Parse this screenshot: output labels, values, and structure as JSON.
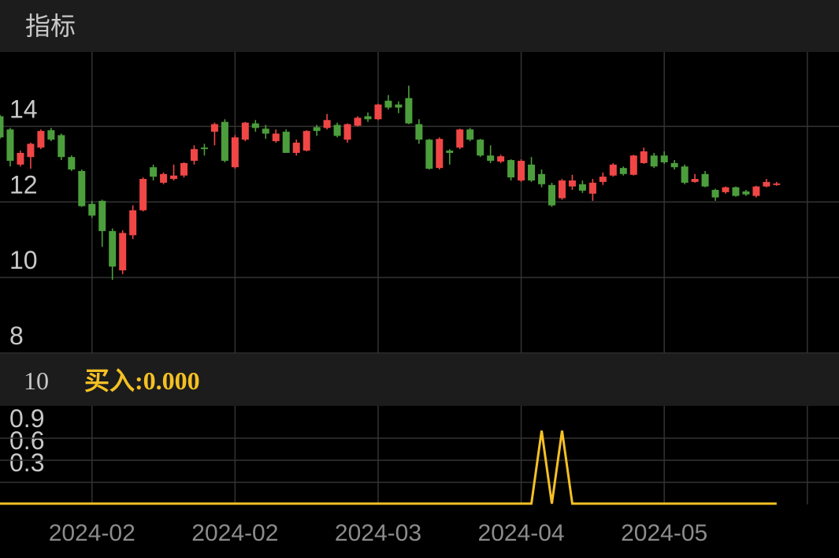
{
  "header": {
    "title": "指标"
  },
  "chart_data": [
    {
      "type": "candlestick",
      "up_color": "#f04646",
      "down_color": "#4c9e3c",
      "grid": true,
      "xlim": [
        0,
        82.1
      ],
      "ylim": [
        8,
        15.97
      ],
      "yticks": [
        8,
        10,
        12,
        14
      ],
      "open": [
        14.27,
        13.92,
        12.99,
        13.19,
        13.44,
        13.9,
        13.77,
        13.19,
        12.82,
        11.95,
        12.03,
        11.23,
        10.19,
        11.12,
        11.78,
        12.92,
        12.51,
        12.61,
        12.7,
        13.09,
        13.44,
        13.86,
        14.12,
        12.92,
        13.65,
        14.08,
        13.94,
        13.61,
        13.86,
        13.3,
        13.36,
        13.98,
        13.96,
        14.04,
        13.65,
        14.02,
        14.27,
        14.19,
        14.68,
        14.58,
        14.75,
        14.06,
        13.65,
        12.9,
        13.36,
        13.44,
        13.92,
        13.65,
        13.23,
        13.07,
        13.11,
        12.57,
        12.99,
        12.74,
        12.45,
        12.1,
        12.41,
        12.47,
        12.22,
        12.53,
        12.7,
        12.9,
        12.72,
        13.03,
        13.23,
        13.23,
        13.03,
        12.94,
        12.53,
        12.74,
        12.32,
        12.26,
        12.39,
        12.28,
        12.16,
        12.41,
        12.45
      ],
      "high": [
        14.31,
        13.96,
        13.36,
        13.57,
        13.92,
        13.96,
        13.81,
        13.23,
        12.86,
        12.03,
        12.06,
        11.3,
        11.25,
        11.91,
        12.65,
        12.99,
        12.78,
        12.99,
        13.05,
        13.5,
        13.54,
        14.1,
        14.19,
        13.77,
        14.12,
        14.17,
        14.04,
        13.92,
        13.92,
        13.65,
        13.9,
        14.04,
        14.33,
        14.1,
        14.08,
        14.27,
        14.37,
        14.6,
        14.83,
        14.66,
        15.08,
        14.19,
        13.67,
        13.71,
        13.4,
        13.94,
        13.96,
        13.67,
        13.5,
        13.25,
        13.13,
        13.13,
        13.19,
        12.86,
        12.51,
        12.61,
        12.72,
        12.57,
        12.61,
        12.78,
        13.03,
        12.94,
        13.25,
        13.44,
        13.3,
        13.34,
        13.11,
        12.99,
        12.74,
        12.82,
        12.35,
        12.41,
        12.41,
        12.32,
        12.43,
        12.61,
        12.53
      ],
      "low": [
        13.67,
        12.94,
        12.94,
        12.88,
        13.4,
        13.61,
        13.11,
        12.82,
        11.87,
        11.58,
        10.81,
        9.94,
        10.09,
        11.02,
        11.75,
        12.57,
        12.47,
        12.57,
        12.65,
        12.99,
        13.23,
        13.5,
        13.05,
        12.88,
        13.61,
        13.86,
        13.67,
        13.57,
        13.3,
        13.23,
        13.34,
        13.75,
        13.92,
        13.71,
        13.57,
        14,
        14.12,
        14.17,
        14.45,
        14.35,
        14.06,
        13.54,
        12.86,
        12.86,
        12.99,
        13.4,
        13.61,
        13.19,
        13.03,
        13.03,
        12.57,
        12.53,
        12.53,
        12.39,
        11.87,
        12.06,
        12.32,
        12.24,
        12.03,
        12.45,
        12.67,
        12.7,
        12.7,
        13.01,
        12.9,
        13.01,
        12.86,
        12.47,
        12.51,
        12.39,
        12.03,
        12.22,
        12.14,
        12.16,
        12.12,
        12.39,
        12.43
      ],
      "close": [
        13.71,
        13.09,
        13.3,
        13.54,
        13.88,
        13.65,
        13.19,
        12.86,
        11.89,
        11.64,
        11.23,
        10.29,
        11.18,
        11.78,
        12.61,
        12.67,
        12.74,
        12.7,
        13.03,
        13.4,
        13.4,
        14.06,
        13.09,
        13.71,
        14.1,
        13.96,
        13.81,
        13.81,
        13.3,
        13.57,
        13.88,
        13.88,
        14.17,
        13.75,
        14.06,
        14.23,
        14.19,
        14.58,
        14.5,
        14.5,
        14.08,
        13.65,
        12.88,
        13.67,
        13.3,
        13.92,
        13.65,
        13.23,
        13.09,
        13.21,
        12.65,
        13.09,
        12.57,
        12.47,
        11.91,
        12.57,
        12.57,
        12.3,
        12.51,
        12.67,
        12.99,
        12.74,
        13.23,
        13.34,
        12.94,
        13.05,
        12.92,
        12.51,
        12.61,
        12.41,
        12.12,
        12.39,
        12.16,
        12.2,
        12.41,
        12.53,
        12.49
      ]
    },
    {
      "type": "line",
      "parameter": "10",
      "label": "买入:0.000",
      "color": "#f5c024",
      "xlim": [
        0,
        82.1
      ],
      "ylim": [
        0,
        1.34
      ],
      "yticks": [
        0.3,
        0.6,
        0.9
      ],
      "xticks": [
        {
          "value": 9,
          "label": "2024-02"
        },
        {
          "value": 23,
          "label": "2024-02"
        },
        {
          "value": 37,
          "label": "2024-03"
        },
        {
          "value": 51,
          "label": "2024-04"
        },
        {
          "value": 65,
          "label": "2024-05"
        },
        {
          "value": 79,
          "label": null
        }
      ],
      "values": [
        0,
        0,
        0,
        0,
        0,
        0,
        0,
        0,
        0,
        0,
        0,
        0,
        0,
        0,
        0,
        0,
        0,
        0,
        0,
        0,
        0,
        0,
        0,
        0,
        0,
        0,
        0,
        0,
        0,
        0,
        0,
        0,
        0,
        0,
        0,
        0,
        0,
        0,
        0,
        0,
        0,
        0,
        0,
        0,
        0,
        0,
        0,
        0,
        0,
        0,
        0,
        0,
        0,
        1,
        0,
        1,
        0,
        0,
        0,
        0,
        0,
        0,
        0,
        0,
        0,
        0,
        0,
        0,
        0,
        0,
        0,
        0,
        0,
        0,
        0,
        0,
        0
      ]
    }
  ]
}
